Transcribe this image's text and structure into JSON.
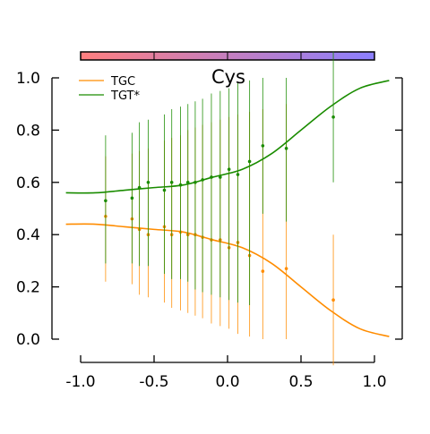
{
  "chart_data": {
    "type": "scatter",
    "title": "Cys",
    "xlabel": "",
    "ylabel": "",
    "xlim": [
      -1.0,
      1.0
    ],
    "ylim": [
      0.0,
      1.0
    ],
    "x_ticks": [
      "-1.0",
      "-0.5",
      "0.0",
      "0.5",
      "1.0"
    ],
    "y_ticks": [
      "0.0",
      "0.2",
      "0.4",
      "0.6",
      "0.8",
      "1.0"
    ],
    "grid": false,
    "legend_position": "top-left",
    "colorbar": {
      "gradient": [
        "#ff7f7f",
        "#8b7fff"
      ],
      "tick_marks": [
        -1.0,
        -0.5,
        0.0,
        0.5,
        1.0
      ]
    },
    "series": [
      {
        "name": "TGC",
        "color": "#ff8c00",
        "points": [
          {
            "x": -0.83,
            "y": 0.47,
            "low": 0.22,
            "high": 0.7
          },
          {
            "x": -0.65,
            "y": 0.46,
            "low": 0.21,
            "high": 0.71
          },
          {
            "x": -0.6,
            "y": 0.42,
            "low": 0.17,
            "high": 0.72
          },
          {
            "x": -0.54,
            "y": 0.4,
            "low": 0.16,
            "high": 0.73
          },
          {
            "x": -0.43,
            "y": 0.43,
            "low": 0.14,
            "high": 0.76
          },
          {
            "x": -0.38,
            "y": 0.4,
            "low": 0.12,
            "high": 0.77
          },
          {
            "x": -0.32,
            "y": 0.41,
            "low": 0.11,
            "high": 0.78
          },
          {
            "x": -0.27,
            "y": 0.4,
            "low": 0.1,
            "high": 0.8
          },
          {
            "x": -0.22,
            "y": 0.4,
            "low": 0.09,
            "high": 0.81
          },
          {
            "x": -0.17,
            "y": 0.39,
            "low": 0.08,
            "high": 0.82
          },
          {
            "x": -0.11,
            "y": 0.38,
            "low": 0.06,
            "high": 0.83
          },
          {
            "x": -0.05,
            "y": 0.38,
            "low": 0.05,
            "high": 0.84
          },
          {
            "x": 0.01,
            "y": 0.35,
            "low": 0.04,
            "high": 0.85
          },
          {
            "x": 0.07,
            "y": 0.37,
            "low": 0.02,
            "high": 0.86
          },
          {
            "x": 0.15,
            "y": 0.32,
            "low": 0.01,
            "high": 0.87
          },
          {
            "x": 0.24,
            "y": 0.26,
            "low": 0.0,
            "high": 0.88
          },
          {
            "x": 0.4,
            "y": 0.27,
            "low": 0.0,
            "high": 0.9
          },
          {
            "x": 0.72,
            "y": 0.15,
            "low": -0.1,
            "high": 0.4
          }
        ],
        "fit": [
          {
            "x": -1.1,
            "y": 0.44
          },
          {
            "x": -0.9,
            "y": 0.44
          },
          {
            "x": -0.7,
            "y": 0.43
          },
          {
            "x": -0.5,
            "y": 0.42
          },
          {
            "x": -0.3,
            "y": 0.41
          },
          {
            "x": -0.1,
            "y": 0.38
          },
          {
            "x": 0.1,
            "y": 0.35
          },
          {
            "x": 0.3,
            "y": 0.29
          },
          {
            "x": 0.5,
            "y": 0.2
          },
          {
            "x": 0.7,
            "y": 0.11
          },
          {
            "x": 0.9,
            "y": 0.04
          },
          {
            "x": 1.1,
            "y": 0.01
          }
        ]
      },
      {
        "name": "TGT*",
        "color": "#1a8c00",
        "points": [
          {
            "x": -0.83,
            "y": 0.53,
            "low": 0.29,
            "high": 0.78
          },
          {
            "x": -0.65,
            "y": 0.54,
            "low": 0.29,
            "high": 0.79
          },
          {
            "x": -0.6,
            "y": 0.58,
            "low": 0.28,
            "high": 0.83
          },
          {
            "x": -0.54,
            "y": 0.6,
            "low": 0.28,
            "high": 0.84
          },
          {
            "x": -0.43,
            "y": 0.57,
            "low": 0.25,
            "high": 0.86
          },
          {
            "x": -0.38,
            "y": 0.6,
            "low": 0.23,
            "high": 0.88
          },
          {
            "x": -0.32,
            "y": 0.59,
            "low": 0.23,
            "high": 0.89
          },
          {
            "x": -0.27,
            "y": 0.6,
            "low": 0.22,
            "high": 0.9
          },
          {
            "x": -0.22,
            "y": 0.6,
            "low": 0.19,
            "high": 0.91
          },
          {
            "x": -0.17,
            "y": 0.61,
            "low": 0.18,
            "high": 0.92
          },
          {
            "x": -0.11,
            "y": 0.62,
            "low": 0.17,
            "high": 0.94
          },
          {
            "x": -0.05,
            "y": 0.62,
            "low": 0.16,
            "high": 0.95
          },
          {
            "x": 0.01,
            "y": 0.65,
            "low": 0.15,
            "high": 0.96
          },
          {
            "x": 0.07,
            "y": 0.63,
            "low": 0.14,
            "high": 0.98
          },
          {
            "x": 0.15,
            "y": 0.68,
            "low": 0.13,
            "high": 0.99
          },
          {
            "x": 0.24,
            "y": 0.74,
            "low": 0.48,
            "high": 1.0
          },
          {
            "x": 0.4,
            "y": 0.73,
            "low": 0.45,
            "high": 1.0
          },
          {
            "x": 0.72,
            "y": 0.85,
            "low": 0.6,
            "high": 1.1
          }
        ],
        "fit": [
          {
            "x": -1.1,
            "y": 0.56
          },
          {
            "x": -0.9,
            "y": 0.56
          },
          {
            "x": -0.7,
            "y": 0.57
          },
          {
            "x": -0.5,
            "y": 0.58
          },
          {
            "x": -0.3,
            "y": 0.59
          },
          {
            "x": -0.1,
            "y": 0.62
          },
          {
            "x": 0.1,
            "y": 0.65
          },
          {
            "x": 0.3,
            "y": 0.71
          },
          {
            "x": 0.5,
            "y": 0.8
          },
          {
            "x": 0.7,
            "y": 0.89
          },
          {
            "x": 0.9,
            "y": 0.96
          },
          {
            "x": 1.1,
            "y": 0.99
          }
        ]
      }
    ]
  }
}
